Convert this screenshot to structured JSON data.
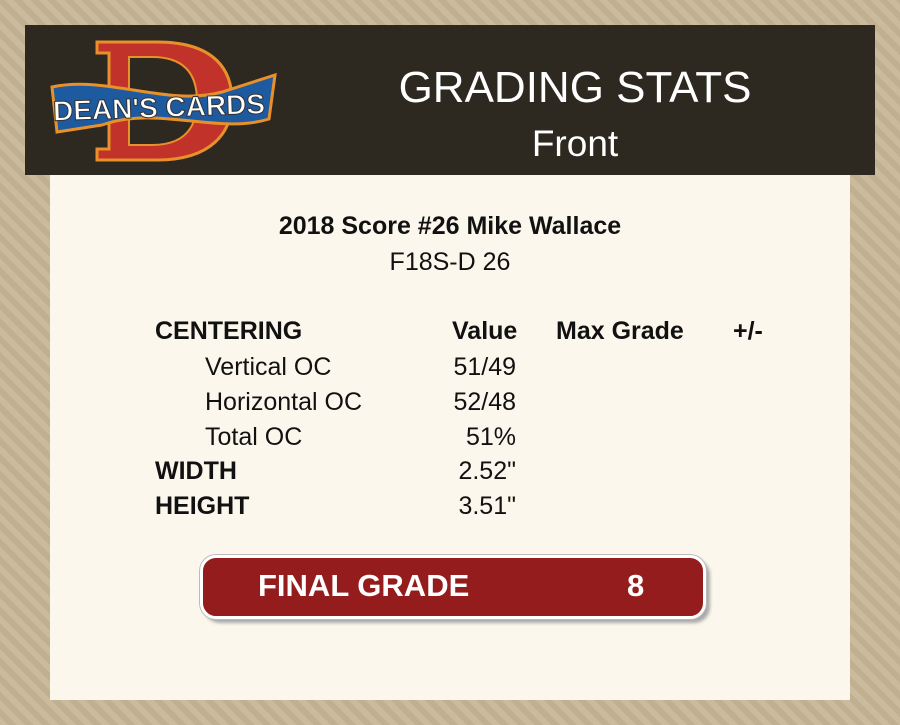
{
  "header": {
    "logo_text": "DEAN'S CARDS",
    "title": "GRADING STATS",
    "subtitle": "Front"
  },
  "card": {
    "name": "2018 Score #26 Mike Wallace",
    "code": "F18S-D 26"
  },
  "table": {
    "headers": {
      "section": "CENTERING",
      "value": "Value",
      "max_grade": "Max Grade",
      "plus_minus": "+/-"
    },
    "rows": [
      {
        "label": "Vertical OC",
        "value": "51/49"
      },
      {
        "label": "Horizontal OC",
        "value": "52/48"
      },
      {
        "label": "Total OC",
        "value": "51%"
      },
      {
        "label": "WIDTH",
        "value": "2.52\""
      },
      {
        "label": "HEIGHT",
        "value": "3.51\""
      }
    ]
  },
  "final_grade": {
    "label": "FINAL GRADE",
    "value": "8"
  },
  "colors": {
    "header_bg": "#2d2820",
    "panel_bg": "#fcf7ec",
    "grade_bg": "#941c1c"
  }
}
